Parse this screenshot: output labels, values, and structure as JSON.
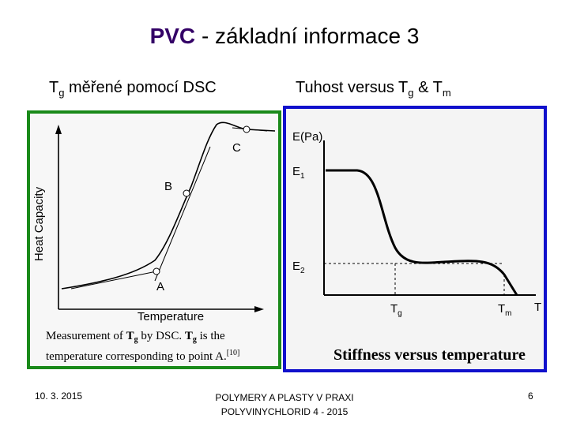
{
  "slide": {
    "title_pvc": "PVC",
    "title_rest": "- základní informace 3",
    "subtitle_left": {
      "text": "T",
      "sub": "g",
      "after": " měřené pomocí DSC"
    },
    "subtitle_right": {
      "text": "Tuhost versus T",
      "sub1": "g",
      "mid": " & T",
      "sub2": "m"
    }
  },
  "left_figure": {
    "ylabel": "Heat Capacity",
    "xlabel": "Temperature",
    "points": [
      "A",
      "B",
      "C"
    ],
    "caption_line1_a": "Measurement of ",
    "caption_line1_t": "T",
    "caption_line1_sub": "g",
    "caption_line1_b": " by DSC. ",
    "caption_line1_t2": "T",
    "caption_line1_sub2": "g",
    "caption_line1_c": " is the",
    "caption_line2": "temperature corresponding to point A.",
    "caption_ref": "[10]",
    "border_color": "#1a8a1a"
  },
  "right_figure": {
    "ylabel": "E(Pa)",
    "y_tick_e1": "E",
    "y_tick_e1_sub": "1",
    "y_tick_e2": "E",
    "y_tick_e2_sub": "2",
    "x_tick_tg": "T",
    "x_tick_tg_sub": "g",
    "x_tick_tm": "T",
    "x_tick_tm_sub": "m",
    "xlabel": "T",
    "caption": "Stiffness versus temperature",
    "border_color": "#1010cc"
  },
  "footer": {
    "date": "10. 3. 2015",
    "center_line1": "POLYMERY A PLASTY V PRAXI",
    "center_line2": "POLYVINYCHLORID 4 - 2015",
    "page": "6"
  }
}
